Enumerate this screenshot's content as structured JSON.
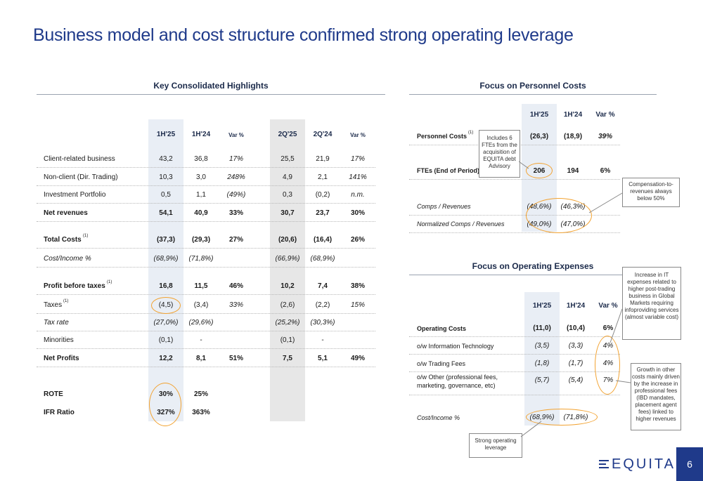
{
  "title": "Business model and cost structure confirmed strong operating leverage",
  "page_number": "6",
  "logo_text": "EQUITA",
  "highlights": {
    "section_title": "Key Consolidated Highlights",
    "headers": [
      "1H'25",
      "1H'24",
      "Var %",
      "2Q'25",
      "2Q'24",
      "Var %"
    ],
    "rows": [
      {
        "label": "Client-related business",
        "v": [
          "43,2",
          "36,8",
          "17%",
          "25,5",
          "21,9",
          "17%"
        ]
      },
      {
        "label": "Non-client (Dir. Trading)",
        "v": [
          "10,3",
          "3,0",
          "248%",
          "4,9",
          "2,1",
          "141%"
        ]
      },
      {
        "label": "Investment Portfolio",
        "v": [
          "0,5",
          "1,1",
          "(49%)",
          "0,3",
          "(0,2)",
          "n.m."
        ]
      },
      {
        "label": "Net revenues",
        "v": [
          "54,1",
          "40,9",
          "33%",
          "30,7",
          "23,7",
          "30%"
        ]
      },
      {
        "label": "Total Costs",
        "sup": "(1)",
        "v": [
          "(37,3)",
          "(29,3)",
          "27%",
          "(20,6)",
          "(16,4)",
          "26%"
        ]
      },
      {
        "label": "Cost/Income %",
        "v": [
          "(68,9%)",
          "(71,8%)",
          "",
          "(66,9%)",
          "(68,9%)",
          ""
        ]
      },
      {
        "label": "Profit before taxes",
        "sup": "(1)",
        "v": [
          "16,8",
          "11,5",
          "46%",
          "10,2",
          "7,4",
          "38%"
        ]
      },
      {
        "label": "Taxes",
        "sup": "(1)",
        "v": [
          "(4,5)",
          "(3,4)",
          "33%",
          "(2,6)",
          "(2,2)",
          "15%"
        ]
      },
      {
        "label": "Tax rate",
        "v": [
          "(27,0%)",
          "(29,6%)",
          "",
          "(25,2%)",
          "(30,3%)",
          ""
        ]
      },
      {
        "label": "Minorities",
        "v": [
          "(0,1)",
          "-",
          "",
          "(0,1)",
          "-",
          ""
        ]
      },
      {
        "label": "Net Profits",
        "v": [
          "12,2",
          "8,1",
          "51%",
          "7,5",
          "5,1",
          "49%"
        ]
      },
      {
        "label": "ROTE",
        "v": [
          "30%",
          "25%",
          "",
          "",
          "",
          ""
        ]
      },
      {
        "label": "IFR Ratio",
        "v": [
          "327%",
          "363%",
          "",
          "",
          "",
          ""
        ]
      }
    ]
  },
  "personnel": {
    "section_title": "Focus on Personnel Costs",
    "headers": [
      "1H'25",
      "1H'24",
      "Var %"
    ],
    "rows": [
      {
        "label": "Personnel Costs",
        "sup": "(1)",
        "v": [
          "(26,3)",
          "(18,9)",
          "39%"
        ]
      },
      {
        "label": "FTEs (End of Period)",
        "v": [
          "206",
          "194",
          "6%"
        ]
      },
      {
        "label": "Comps / Revenues",
        "v": [
          "(48,6%)",
          "(46,3%)",
          ""
        ]
      },
      {
        "label": "Normalized Comps / Revenues",
        "v": [
          "(49,0%)",
          "(47,0%)",
          ""
        ]
      }
    ],
    "callout_ftes": "Includes 6 FTEs from the acquisition of EQUITA debt Advisory",
    "callout_comp": "Compensation-to-revenues always below 50%"
  },
  "opex": {
    "section_title": "Focus on Operating Expenses",
    "headers": [
      "1H'25",
      "1H'24",
      "Var %"
    ],
    "rows": [
      {
        "label": "Operating Costs",
        "v": [
          "(11,0)",
          "(10,4)",
          "6%"
        ]
      },
      {
        "label": "o/w Information Technology",
        "v": [
          "(3,5)",
          "(3,3)",
          "4%"
        ]
      },
      {
        "label": "o/w Trading Fees",
        "v": [
          "(1,8)",
          "(1,7)",
          "4%"
        ]
      },
      {
        "label": "o/w Other (professional fees, marketing, governance, etc)",
        "v": [
          "(5,7)",
          "(5,4)",
          "7%"
        ]
      },
      {
        "label": "Cost/Income %",
        "v": [
          "(68,9%)",
          "(71,8%)",
          ""
        ]
      }
    ],
    "callout_it": "Increase in IT expenses related to higher post-trading business in Global Markets requiring infoproviding services (almost variable cost)",
    "callout_other": "Growth in other costs mainly driven by the increase in professional fees (IBD mandates, placement agent fees) linked to higher revenues",
    "callout_leverage": "Strong operating leverage"
  },
  "colors": {
    "accent": "#1f3a8a",
    "highlight": "#f2a230",
    "shade": "#e9eef5"
  }
}
